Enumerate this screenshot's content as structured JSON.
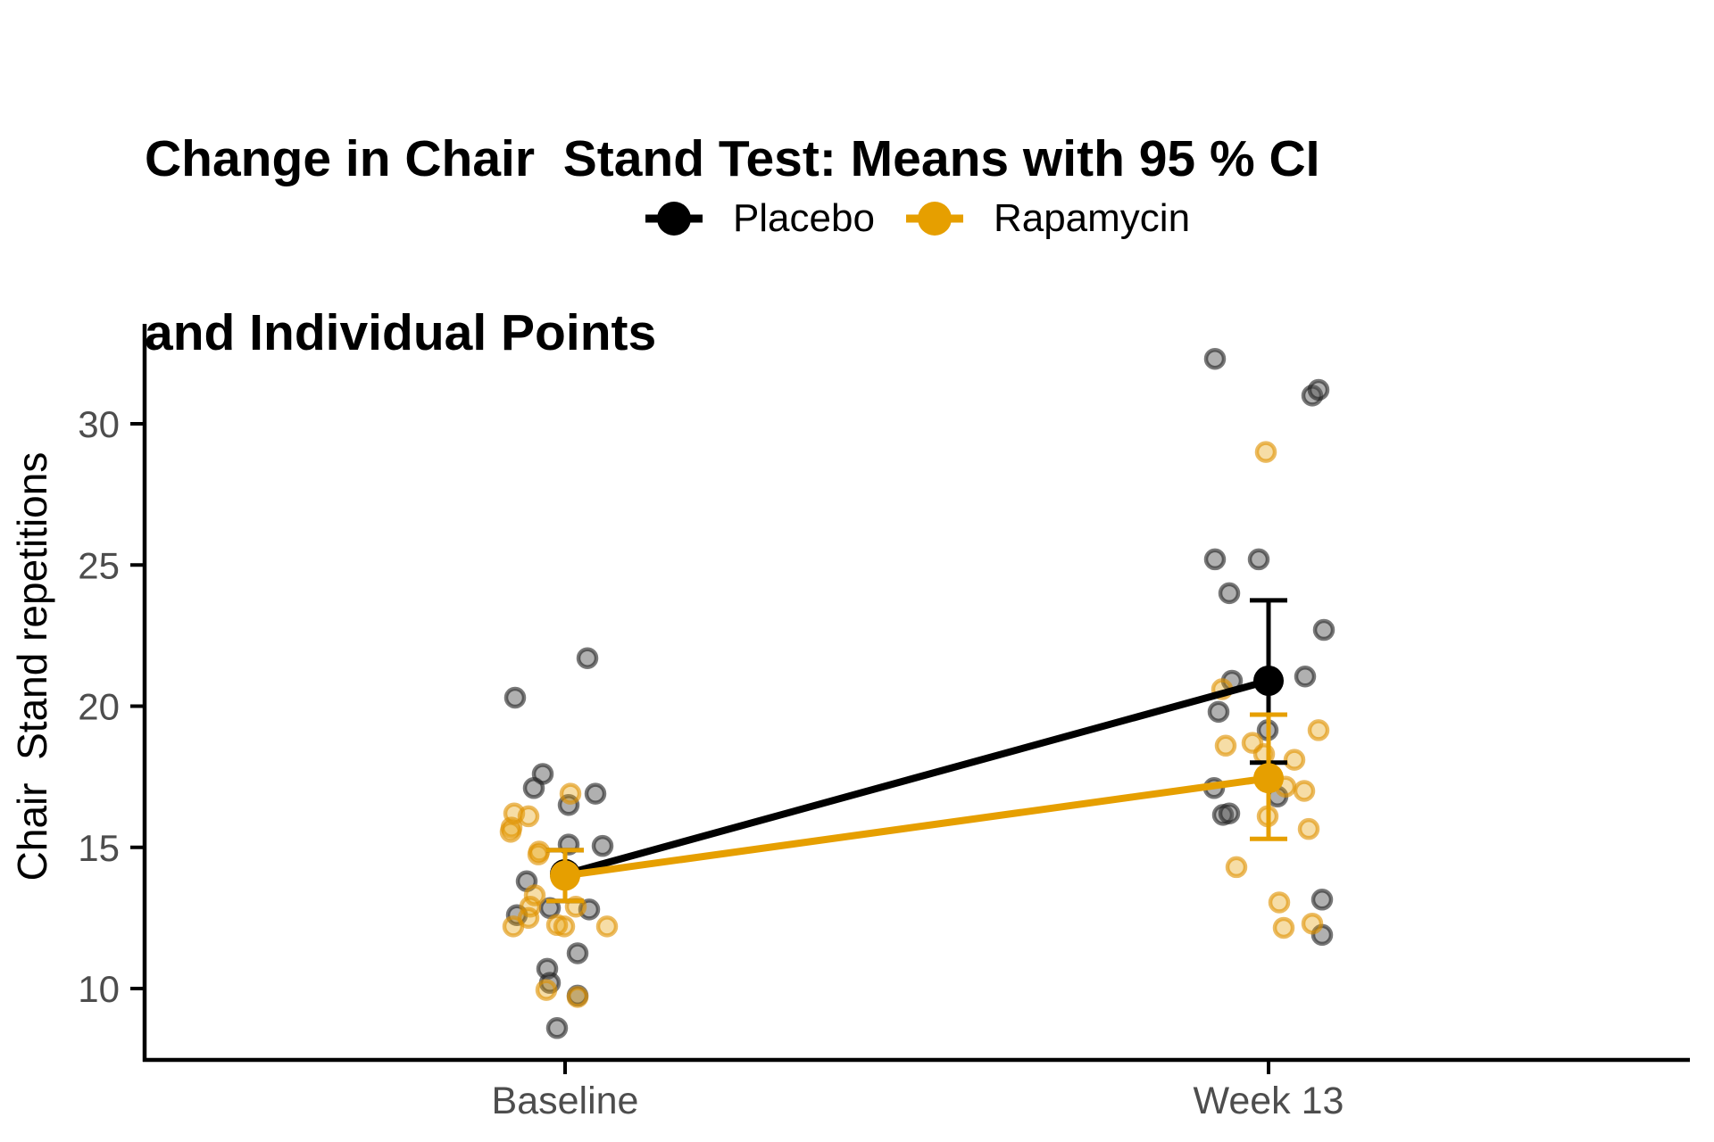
{
  "title": {
    "line1": "Change in Chair  Stand Test: Means with 95 % CI",
    "line2": "and Individual Points"
  },
  "legend": {
    "position": "top",
    "items": [
      {
        "label": "Placebo",
        "color": "#000000"
      },
      {
        "label": "Rapamycin",
        "color": "#E69F00"
      }
    ]
  },
  "colors": {
    "placebo": "#000000",
    "rapamycin": "#E69F00",
    "tick_text": "#4D4D4D",
    "axis_line": "#000000",
    "background": "#FFFFFF"
  },
  "chart_data": {
    "type": "scatter",
    "title": "Change in Chair  Stand Test: Means with 95 % CI and Individual Points",
    "ylabel": "Chair  Stand repetitions",
    "xlabel": "",
    "x_categories": [
      "Baseline",
      "Week 13"
    ],
    "yticks": [
      10,
      15,
      20,
      25,
      30
    ],
    "ylim": [
      7.8,
      33.5
    ],
    "grid": false,
    "legend_position": "top",
    "series": [
      {
        "name": "Placebo",
        "color": "#000000",
        "means": [
          {
            "x": "Baseline",
            "mean": 14.05,
            "ci_low": 13.1,
            "ci_high": 14.9
          },
          {
            "x": "Week 13",
            "mean": 20.9,
            "ci_low": 18.0,
            "ci_high": 23.75
          }
        ],
        "points_dx_value": {
          "Baseline": [
            [
              25,
              21.7
            ],
            [
              -56,
              20.3
            ],
            [
              -25,
              17.6
            ],
            [
              -35,
              17.1
            ],
            [
              34,
              16.9
            ],
            [
              4,
              16.5
            ],
            [
              4,
              15.1
            ],
            [
              42,
              15.05
            ],
            [
              -43,
              13.8
            ],
            [
              -17,
              12.85
            ],
            [
              27,
              12.8
            ],
            [
              -54,
              12.6
            ],
            [
              14,
              11.25
            ],
            [
              -20,
              10.7
            ],
            [
              -17,
              10.2
            ],
            [
              14,
              9.75
            ],
            [
              -9,
              8.6
            ]
          ],
          "Week 13": [
            [
              -60,
              32.3
            ],
            [
              49,
              31.0
            ],
            [
              56,
              31.2
            ],
            [
              -60,
              25.2
            ],
            [
              -11,
              25.2
            ],
            [
              -44,
              24.0
            ],
            [
              62,
              22.7
            ],
            [
              -41,
              20.9
            ],
            [
              41,
              21.05
            ],
            [
              -56,
              19.8
            ],
            [
              -1,
              19.15
            ],
            [
              -61,
              17.1
            ],
            [
              10,
              16.8
            ],
            [
              -51,
              16.15
            ],
            [
              -44,
              16.2
            ],
            [
              60,
              13.15
            ],
            [
              60,
              11.9
            ]
          ]
        }
      },
      {
        "name": "Rapamycin",
        "color": "#E69F00",
        "means": [
          {
            "x": "Baseline",
            "mean": 14.0,
            "ci_low": 13.1,
            "ci_high": 14.9
          },
          {
            "x": "Week 13",
            "mean": 17.45,
            "ci_low": 15.3,
            "ci_high": 19.7
          }
        ],
        "points_dx_value": {
          "Baseline": [
            [
              6,
              16.9
            ],
            [
              -57,
              16.2
            ],
            [
              -41,
              16.1
            ],
            [
              -60,
              15.7
            ],
            [
              -61,
              15.55
            ],
            [
              -29,
              14.85
            ],
            [
              -30,
              14.75
            ],
            [
              -34,
              13.3
            ],
            [
              -39,
              12.9
            ],
            [
              12,
              12.9
            ],
            [
              -41,
              12.5
            ],
            [
              -58,
              12.2
            ],
            [
              -9,
              12.25
            ],
            [
              -1,
              12.2
            ],
            [
              47,
              12.2
            ],
            [
              -21,
              9.95
            ],
            [
              14,
              9.7
            ]
          ],
          "Week 13": [
            [
              -3,
              29.0
            ],
            [
              -52,
              20.6
            ],
            [
              56,
              19.15
            ],
            [
              -18,
              18.7
            ],
            [
              -48,
              18.6
            ],
            [
              -5,
              18.3
            ],
            [
              29,
              18.1
            ],
            [
              19,
              17.15
            ],
            [
              40,
              17.0
            ],
            [
              -1,
              16.1
            ],
            [
              45,
              15.65
            ],
            [
              -36,
              14.3
            ],
            [
              12,
              13.05
            ],
            [
              17,
              12.15
            ],
            [
              49,
              12.3
            ]
          ]
        }
      }
    ]
  }
}
